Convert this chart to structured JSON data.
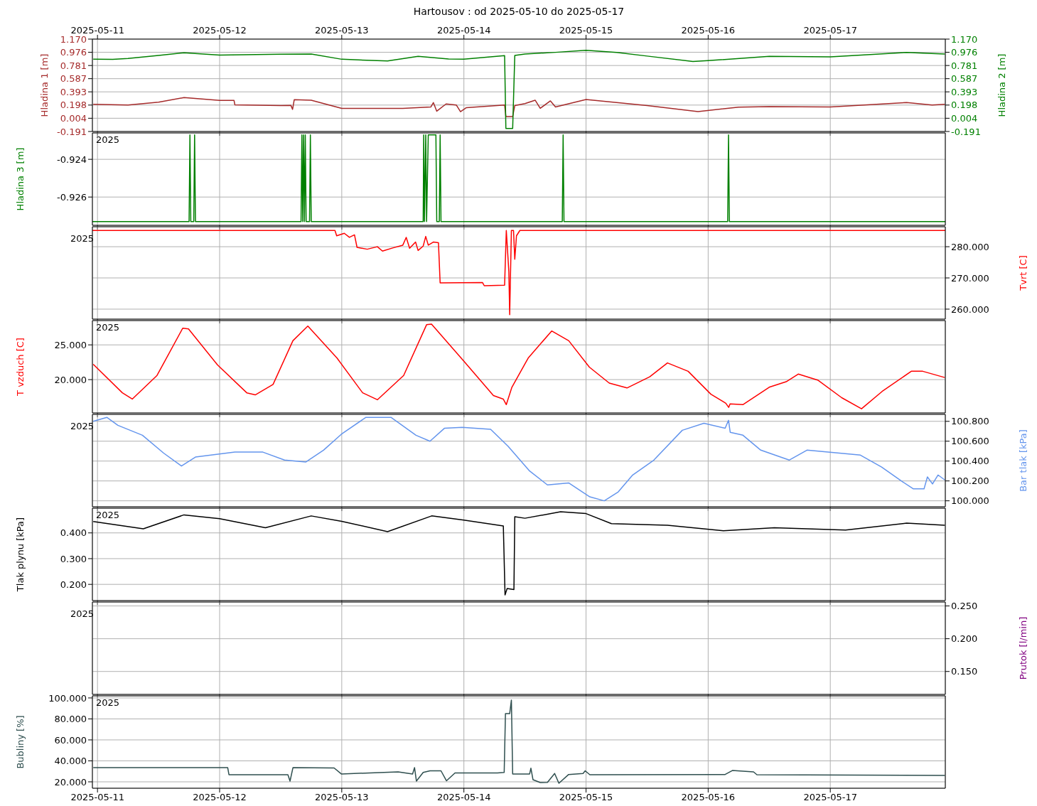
{
  "chart_data": [
    {
      "type": "line",
      "title": "Hartousov : od 2025-05-10 do 2025-05-17",
      "xlim": [
        "2025-05-10T23:00",
        "2025-05-17T22:36"
      ],
      "xticks": [
        "2025-05-11",
        "2025-05-12",
        "2025-05-13",
        "2025-05-14",
        "2025-05-15",
        "2025-05-16",
        "2025-05-17"
      ],
      "ylabel": "Hladina 1 [m]",
      "y2label": "Hladina 2 [m]",
      "ylim": [
        -0.191,
        1.17
      ],
      "yticks": [
        {
          "value": -0.191,
          "label": "-0.191"
        },
        {
          "value": 0.004,
          "label": "0.004"
        },
        {
          "value": 0.198,
          "label": "0.198"
        },
        {
          "value": 0.393,
          "label": "0.393"
        },
        {
          "value": 0.587,
          "label": "0.587"
        },
        {
          "value": 0.781,
          "label": "0.781"
        },
        {
          "value": 0.976,
          "label": "0.976"
        },
        {
          "value": 1.17,
          "label": "1.170"
        }
      ],
      "y2lim": [
        -0.191,
        1.17
      ],
      "y2ticks": [
        {
          "value": -0.191,
          "label": "-0.191"
        },
        {
          "value": 0.004,
          "label": "0.004"
        },
        {
          "value": 0.198,
          "label": "0.198"
        },
        {
          "value": 0.393,
          "label": "0.393"
        },
        {
          "value": 0.587,
          "label": "0.587"
        },
        {
          "value": 0.781,
          "label": "0.781"
        },
        {
          "value": 0.976,
          "label": "0.976"
        },
        {
          "value": 1.17,
          "label": "1.170"
        }
      ],
      "grid": true,
      "series": [
        {
          "color": "#a52a2a",
          "x": [
            "2025-05-10T23:10",
            "2025-05-11T06:00",
            "2025-05-11T12:00",
            "2025-05-11T17:00",
            "2025-05-12T00:00",
            "2025-05-12T02:50",
            "2025-05-12T03:00",
            "2025-05-12T12:00",
            "2025-05-12T14:00",
            "2025-05-12T14:20",
            "2025-05-12T14:40",
            "2025-05-12T18:00",
            "2025-05-13T00:00",
            "2025-05-13T12:00",
            "2025-05-13T17:30",
            "2025-05-13T18:00",
            "2025-05-13T18:40",
            "2025-05-13T20:30",
            "2025-05-13T22:30",
            "2025-05-13T23:20",
            "2025-05-14T00:30",
            "2025-05-14T08:00",
            "2025-05-14T08:15",
            "2025-05-14T09:35",
            "2025-05-14T10:00",
            "2025-05-14T12:00",
            "2025-05-14T14:00",
            "2025-05-14T15:00",
            "2025-05-14T17:00",
            "2025-05-14T18:00",
            "2025-05-15T00:00",
            "2025-05-15T12:00",
            "2025-05-15T22:00",
            "2025-05-16T06:00",
            "2025-05-16T12:00",
            "2025-05-17T00:00",
            "2025-05-17T15:00",
            "2025-05-17T20:00",
            "2025-05-17T22:30"
          ],
          "values": [
            0.209,
            0.2,
            0.24,
            0.309,
            0.266,
            0.266,
            0.201,
            0.19,
            0.195,
            0.135,
            0.278,
            0.27,
            0.149,
            0.15,
            0.17,
            0.235,
            0.108,
            0.215,
            0.2,
            0.1,
            0.16,
            0.2,
            0.03,
            0.03,
            0.19,
            0.22,
            0.27,
            0.15,
            0.26,
            0.17,
            0.281,
            0.19,
            0.102,
            0.167,
            0.175,
            0.17,
            0.236,
            0.2,
            0.21
          ]
        },
        {
          "color": "#008000",
          "axis": "y2",
          "x": [
            "2025-05-10T23:10",
            "2025-05-11T03:00",
            "2025-05-11T06:00",
            "2025-05-11T12:00",
            "2025-05-11T17:00",
            "2025-05-12T00:00",
            "2025-05-12T12:00",
            "2025-05-12T18:00",
            "2025-05-13T00:00",
            "2025-05-13T09:00",
            "2025-05-13T15:00",
            "2025-05-13T21:00",
            "2025-05-14T00:00",
            "2025-05-14T08:00",
            "2025-05-14T08:15",
            "2025-05-14T09:35",
            "2025-05-14T10:00",
            "2025-05-14T12:00",
            "2025-05-14T18:00",
            "2025-05-15T00:00",
            "2025-05-15T06:00",
            "2025-05-15T12:00",
            "2025-05-15T21:00",
            "2025-05-16T00:00",
            "2025-05-16T12:00",
            "2025-05-17T00:00",
            "2025-05-17T15:00",
            "2025-05-17T19:00",
            "2025-05-17T22:30"
          ],
          "values": [
            0.873,
            0.872,
            0.885,
            0.93,
            0.969,
            0.935,
            0.947,
            0.95,
            0.873,
            0.847,
            0.916,
            0.878,
            0.873,
            0.926,
            -0.147,
            -0.147,
            0.93,
            0.95,
            0.975,
            1.005,
            0.974,
            0.92,
            0.84,
            0.853,
            0.915,
            0.907,
            0.974,
            0.96,
            0.951
          ]
        }
      ]
    },
    {
      "type": "line",
      "xlim": [
        "2025-05-10T23:00",
        "2025-05-17T22:36"
      ],
      "xticks": [
        "2025-05-11",
        "2025-05-12",
        "2025-05-13",
        "2025-05-14",
        "2025-05-15",
        "2025-05-16",
        "2025-05-17"
      ],
      "tick_labels": "y",
      "ylabel": "Hladina 3 [m]",
      "ylim": [
        -0.9275,
        -0.9226
      ],
      "yticks": [
        {
          "value": -0.926,
          "label": "-0.926"
        },
        {
          "value": -0.924,
          "label": "-0.924"
        }
      ],
      "grid": true,
      "annotations": [
        "2025"
      ],
      "series": [
        {
          "color": "#008000",
          "x": [
            "2025-05-10T23:00",
            "2025-05-11T18:00",
            "2025-05-11T18:10",
            "2025-05-11T18:20",
            "2025-05-11T18:55",
            "2025-05-11T19:05",
            "2025-05-11T19:15",
            "2025-05-12T16:00",
            "2025-05-12T16:10",
            "2025-05-12T16:20",
            "2025-05-12T16:30",
            "2025-05-12T16:40",
            "2025-05-12T16:50",
            "2025-05-12T17:00",
            "2025-05-12T17:40",
            "2025-05-12T17:50",
            "2025-05-12T18:00",
            "2025-05-13T16:00",
            "2025-05-13T16:06",
            "2025-05-13T16:15",
            "2025-05-13T16:30",
            "2025-05-13T16:40",
            "2025-05-13T17:00",
            "2025-05-13T18:30",
            "2025-05-13T18:40",
            "2025-05-13T19:10",
            "2025-05-13T19:20",
            "2025-05-13T19:30",
            "2025-05-14T19:20",
            "2025-05-14T19:30",
            "2025-05-14T19:40",
            "2025-05-16T03:50",
            "2025-05-16T04:00",
            "2025-05-16T04:10",
            "2025-05-17T22:36"
          ],
          "values": [
            -0.9273,
            -0.9273,
            -0.9227,
            -0.9273,
            -0.9273,
            -0.9227,
            -0.9273,
            -0.9273,
            -0.9227,
            -0.9273,
            -0.9227,
            -0.9273,
            -0.9227,
            -0.9273,
            -0.9273,
            -0.9227,
            -0.9273,
            -0.9273,
            -0.9227,
            -0.9273,
            -0.9227,
            -0.9273,
            -0.9227,
            -0.9227,
            -0.9273,
            -0.9273,
            -0.9227,
            -0.9273,
            -0.9273,
            -0.9227,
            -0.9273,
            -0.9273,
            -0.9227,
            -0.9273,
            -0.9273
          ]
        }
      ]
    },
    {
      "type": "line",
      "xlim": [
        "2025-05-10T23:00",
        "2025-05-17T22:36"
      ],
      "xticks": [
        "2025-05-11",
        "2025-05-12",
        "2025-05-13",
        "2025-05-14",
        "2025-05-15",
        "2025-05-16",
        "2025-05-17"
      ],
      "tick_labels": "y",
      "y2label": "Tvrt [C]",
      "y2lim": [
        256.8,
        286.4
      ],
      "y2ticks": [
        {
          "value": 260,
          "label": "260.000"
        },
        {
          "value": 270,
          "label": "270.000"
        },
        {
          "value": 280,
          "label": "280.000"
        }
      ],
      "grid": true,
      "annotations": [
        "2025"
      ],
      "series": [
        {
          "color": "#ff0000",
          "axis": "y2",
          "x": [
            "2025-05-10T23:00",
            "2025-05-12T22:40",
            "2025-05-12T23:00",
            "2025-05-13T00:30",
            "2025-05-13T01:30",
            "2025-05-13T02:30",
            "2025-05-13T03:00",
            "2025-05-13T05:00",
            "2025-05-13T07:00",
            "2025-05-13T08:00",
            "2025-05-13T10:00",
            "2025-05-13T12:00",
            "2025-05-13T12:40",
            "2025-05-13T13:20",
            "2025-05-13T14:30",
            "2025-05-13T15:00",
            "2025-05-13T16:00",
            "2025-05-13T16:30",
            "2025-05-13T17:00",
            "2025-05-13T18:00",
            "2025-05-13T19:00",
            "2025-05-13T19:20",
            "2025-05-14T03:40",
            "2025-05-14T04:00",
            "2025-05-14T08:00",
            "2025-05-14T08:20",
            "2025-05-14T08:50",
            "2025-05-14T09:00",
            "2025-05-14T09:20",
            "2025-05-14T09:45",
            "2025-05-14T10:00",
            "2025-05-14T10:20",
            "2025-05-14T11:00",
            "2025-05-17T22:36"
          ],
          "values": [
            285.2,
            285.2,
            283.5,
            284.3,
            283.0,
            283.8,
            279.8,
            279.2,
            280.0,
            278.6,
            279.6,
            280.5,
            283.0,
            279.5,
            281.5,
            278.8,
            280.2,
            283.3,
            280.5,
            281.5,
            281.3,
            268.4,
            268.5,
            267.5,
            267.7,
            285.2,
            272,
            258.2,
            285.2,
            285.2,
            276,
            283.5,
            285.2,
            285.2
          ]
        }
      ]
    },
    {
      "type": "line",
      "xlim": [
        "2025-05-10T23:00",
        "2025-05-17T22:36"
      ],
      "xticks": [
        "2025-05-11",
        "2025-05-12",
        "2025-05-13",
        "2025-05-14",
        "2025-05-15",
        "2025-05-16",
        "2025-05-17"
      ],
      "tick_labels": "y",
      "ylabel": "T vzduch [C]",
      "ylim": [
        15.2,
        28.5
      ],
      "yticks": [
        {
          "value": 20,
          "label": "20.000"
        },
        {
          "value": 25,
          "label": "25.000"
        }
      ],
      "grid": true,
      "annotations": [
        "2025"
      ],
      "series": [
        {
          "color": "#ff0000",
          "x": [
            "2025-05-10T23:10",
            "2025-05-11T04:53",
            "2025-05-11T06:50",
            "2025-05-11T11:42",
            "2025-05-11T16:45",
            "2025-05-11T17:53",
            "2025-05-11T23:36",
            "2025-05-12T05:20",
            "2025-05-12T07:00",
            "2025-05-12T10:30",
            "2025-05-12T14:24",
            "2025-05-12T17:20",
            "2025-05-12T23:04",
            "2025-05-13T04:06",
            "2025-05-13T07:00",
            "2025-05-13T12:10",
            "2025-05-13T16:40",
            "2025-05-13T17:38",
            "2025-05-14T00:04",
            "2025-05-14T05:48",
            "2025-05-14T07:44",
            "2025-05-14T08:20",
            "2025-05-14T09:26",
            "2025-05-14T12:38",
            "2025-05-14T17:15",
            "2025-05-14T20:36",
            "2025-05-15T00:39",
            "2025-05-15T04:34",
            "2025-05-15T08:03",
            "2025-05-15T12:31",
            "2025-05-15T16:00",
            "2025-05-15T20:04",
            "2025-05-16T00:32",
            "2025-05-16T03:28",
            "2025-05-16T04:02",
            "2025-05-16T04:18",
            "2025-05-16T06:49",
            "2025-05-16T12:00",
            "2025-05-16T15:20",
            "2025-05-16T17:42",
            "2025-05-16T21:37",
            "2025-05-17T02:14",
            "2025-05-17T06:08",
            "2025-05-17T10:11",
            "2025-05-17T15:55",
            "2025-05-17T18:10",
            "2025-05-17T22:29"
          ],
          "values": [
            22.2,
            18.1,
            17.2,
            20.6,
            27.4,
            27.3,
            22.1,
            18.1,
            17.8,
            19.3,
            25.6,
            27.7,
            23.1,
            18.1,
            17.1,
            20.6,
            27.9,
            28.0,
            22.6,
            17.7,
            17.2,
            16.4,
            18.9,
            23.1,
            27.0,
            25.6,
            21.8,
            19.5,
            18.8,
            20.4,
            22.4,
            21.2,
            17.9,
            16.6,
            16.0,
            16.5,
            16.4,
            18.9,
            19.7,
            20.8,
            19.9,
            17.4,
            15.8,
            18.3,
            21.2,
            21.2,
            20.3
          ]
        }
      ]
    },
    {
      "type": "line",
      "xlim": [
        "2025-05-10T23:00",
        "2025-05-17T22:36"
      ],
      "xticks": [
        "2025-05-11",
        "2025-05-12",
        "2025-05-13",
        "2025-05-14",
        "2025-05-15",
        "2025-05-16",
        "2025-05-17"
      ],
      "tick_labels": "y",
      "y2label": "Bar tlak [kPa]",
      "y2lim": [
        99.94,
        100.87
      ],
      "y2ticks": [
        {
          "value": 100,
          "label": "100.000"
        },
        {
          "value": 100.2,
          "label": "100.200"
        },
        {
          "value": 100.4,
          "label": "100.400"
        },
        {
          "value": 100.6,
          "label": "100.600"
        },
        {
          "value": 100.8,
          "label": "100.800"
        }
      ],
      "grid": true,
      "annotations": [
        "2025"
      ],
      "series": [
        {
          "color": "#6495ed",
          "axis": "y2",
          "x": [
            "2025-05-10T23:10",
            "2025-05-11T01:50",
            "2025-05-11T04:00",
            "2025-05-11T08:50",
            "2025-05-11T13:00",
            "2025-05-11T16:30",
            "2025-05-11T19:15",
            "2025-05-12T03:00",
            "2025-05-12T08:30",
            "2025-05-12T12:45",
            "2025-05-12T16:55",
            "2025-05-12T20:25",
            "2025-05-12T23:55",
            "2025-05-13T04:45",
            "2025-05-13T09:40",
            "2025-05-13T14:35",
            "2025-05-13T17:20",
            "2025-05-13T20:10",
            "2025-05-13T23:40",
            "2025-05-14T05:15",
            "2025-05-14T08:40",
            "2025-05-14T12:55",
            "2025-05-14T16:25",
            "2025-05-14T20:35",
            "2025-05-15T00:45",
            "2025-05-15T03:35",
            "2025-05-15T06:20",
            "2025-05-15T09:10",
            "2025-05-15T13:20",
            "2025-05-15T18:55",
            "2025-05-15T23:10",
            "2025-05-16T03:20",
            "2025-05-16T04:00",
            "2025-05-16T04:20",
            "2025-05-16T06:50",
            "2025-05-16T10:20",
            "2025-05-16T15:55",
            "2025-05-16T19:25",
            "2025-05-17T05:55",
            "2025-05-17T10:05",
            "2025-05-17T14:15",
            "2025-05-17T16:20",
            "2025-05-17T18:25",
            "2025-05-17T19:05",
            "2025-05-17T20:05",
            "2025-05-17T21:10",
            "2025-05-17T22:30"
          ],
          "values": [
            100.8,
            100.84,
            100.76,
            100.66,
            100.48,
            100.35,
            100.44,
            100.49,
            100.49,
            100.41,
            100.39,
            100.51,
            100.67,
            100.84,
            100.84,
            100.66,
            100.6,
            100.73,
            100.74,
            100.72,
            100.55,
            100.3,
            100.16,
            100.18,
            100.04,
            100.0,
            100.09,
            100.26,
            100.41,
            100.71,
            100.78,
            100.73,
            100.81,
            100.69,
            100.66,
            100.51,
            100.41,
            100.51,
            100.46,
            100.34,
            100.19,
            100.12,
            100.12,
            100.24,
            100.17,
            100.26,
            100.21
          ]
        }
      ]
    },
    {
      "type": "line",
      "xlim": [
        "2025-05-10T23:00",
        "2025-05-17T22:36"
      ],
      "xticks": [
        "2025-05-11",
        "2025-05-12",
        "2025-05-13",
        "2025-05-14",
        "2025-05-15",
        "2025-05-16",
        "2025-05-17"
      ],
      "tick_labels": "y",
      "ylabel": "Tlak plynu [kPa]",
      "ylim": [
        0.137,
        0.496
      ],
      "yticks": [
        {
          "value": 0.2,
          "label": "0.200"
        },
        {
          "value": 0.3,
          "label": "0.300"
        },
        {
          "value": 0.4,
          "label": "0.400"
        }
      ],
      "grid": true,
      "annotations": [
        "2025"
      ],
      "series": [
        {
          "color": "#000000",
          "x": [
            "2025-05-10T23:10",
            "2025-05-11T09:00",
            "2025-05-11T17:00",
            "2025-05-12T00:00",
            "2025-05-12T09:00",
            "2025-05-12T18:00",
            "2025-05-13T00:00",
            "2025-05-13T09:00",
            "2025-05-13T17:40",
            "2025-05-14T00:00",
            "2025-05-14T07:45",
            "2025-05-14T08:05",
            "2025-05-14T08:30",
            "2025-05-14T09:50",
            "2025-05-14T10:00",
            "2025-05-14T12:00",
            "2025-05-14T19:00",
            "2025-05-15T00:00",
            "2025-05-15T05:00",
            "2025-05-15T16:00",
            "2025-05-16T03:00",
            "2025-05-16T13:00",
            "2025-05-17T03:00",
            "2025-05-17T15:00",
            "2025-05-17T22:30"
          ],
          "values": [
            0.444,
            0.416,
            0.47,
            0.455,
            0.42,
            0.466,
            0.445,
            0.405,
            0.466,
            0.45,
            0.427,
            0.159,
            0.184,
            0.18,
            0.463,
            0.457,
            0.482,
            0.475,
            0.436,
            0.43,
            0.408,
            0.42,
            0.411,
            0.438,
            0.43
          ]
        }
      ]
    },
    {
      "type": "line",
      "tick_labels": "y",
      "y2label": "Prutok [l/min]",
      "y2lim": [
        0.115,
        0.256
      ],
      "y2ticks": [
        {
          "value": 0.15,
          "label": "0.150"
        },
        {
          "value": 0.2,
          "label": "0.200"
        },
        {
          "value": 0.25,
          "label": "0.250"
        }
      ],
      "grid": true,
      "annotations": [
        "2025"
      ],
      "series": [
        {
          "color": "#800080",
          "axis": "y2"
        }
      ]
    },
    {
      "type": "line",
      "xlim": [
        "2025-05-10T23:00",
        "2025-05-17T22:36"
      ],
      "xticks": [
        "2025-05-11",
        "2025-05-12",
        "2025-05-13",
        "2025-05-14",
        "2025-05-15",
        "2025-05-16",
        "2025-05-17"
      ],
      "ylabel": "Bubliny [%]",
      "ylim": [
        13.9,
        102
      ],
      "yticks": [
        {
          "value": 20,
          "label": "20.000"
        },
        {
          "value": 40,
          "label": "40.000"
        },
        {
          "value": 60,
          "label": "60.000"
        },
        {
          "value": 80,
          "label": "80.000"
        },
        {
          "value": 100,
          "label": "100.000"
        }
      ],
      "grid": true,
      "annotations": [
        "2025"
      ],
      "series": [
        {
          "color": "#2f4f4f",
          "x": [
            "2025-05-10T23:10",
            "2025-05-11T15:45",
            "2025-05-12T01:35",
            "2025-05-12T01:50",
            "2025-05-12T13:25",
            "2025-05-12T13:50",
            "2025-05-12T14:25",
            "2025-05-12T22:30",
            "2025-05-12T23:55",
            "2025-05-13T05:30",
            "2025-05-13T11:05",
            "2025-05-13T13:55",
            "2025-05-13T14:18",
            "2025-05-13T14:40",
            "2025-05-13T16:00",
            "2025-05-13T17:20",
            "2025-05-13T19:30",
            "2025-05-13T20:35",
            "2025-05-13T22:15",
            "2025-05-14T06:35",
            "2025-05-14T07:55",
            "2025-05-14T08:10",
            "2025-05-14T09:00",
            "2025-05-14T09:20",
            "2025-05-14T09:35",
            "2025-05-14T12:55",
            "2025-05-14T13:10",
            "2025-05-14T13:35",
            "2025-05-14T15:00",
            "2025-05-14T16:25",
            "2025-05-14T17:50",
            "2025-05-14T18:40",
            "2025-05-14T20:35",
            "2025-05-14T23:25",
            "2025-05-14T23:50",
            "2025-05-15T00:45",
            "2025-05-16T03:20",
            "2025-05-16T04:45",
            "2025-05-16T08:55",
            "2025-05-16T09:35",
            "2025-05-17T22:30"
          ],
          "values": [
            33.6,
            33.6,
            33.6,
            26.8,
            26.8,
            20.7,
            33.6,
            33.2,
            27.5,
            28.5,
            29.5,
            27.5,
            33.6,
            20.7,
            29,
            30.5,
            30.5,
            21,
            28.5,
            28.5,
            29,
            85,
            85,
            98,
            27.5,
            27.5,
            33,
            22,
            19.3,
            19.5,
            28,
            18.6,
            27,
            28,
            30.5,
            26.8,
            27,
            30.8,
            29.5,
            26.8,
            26.1
          ]
        }
      ]
    }
  ]
}
